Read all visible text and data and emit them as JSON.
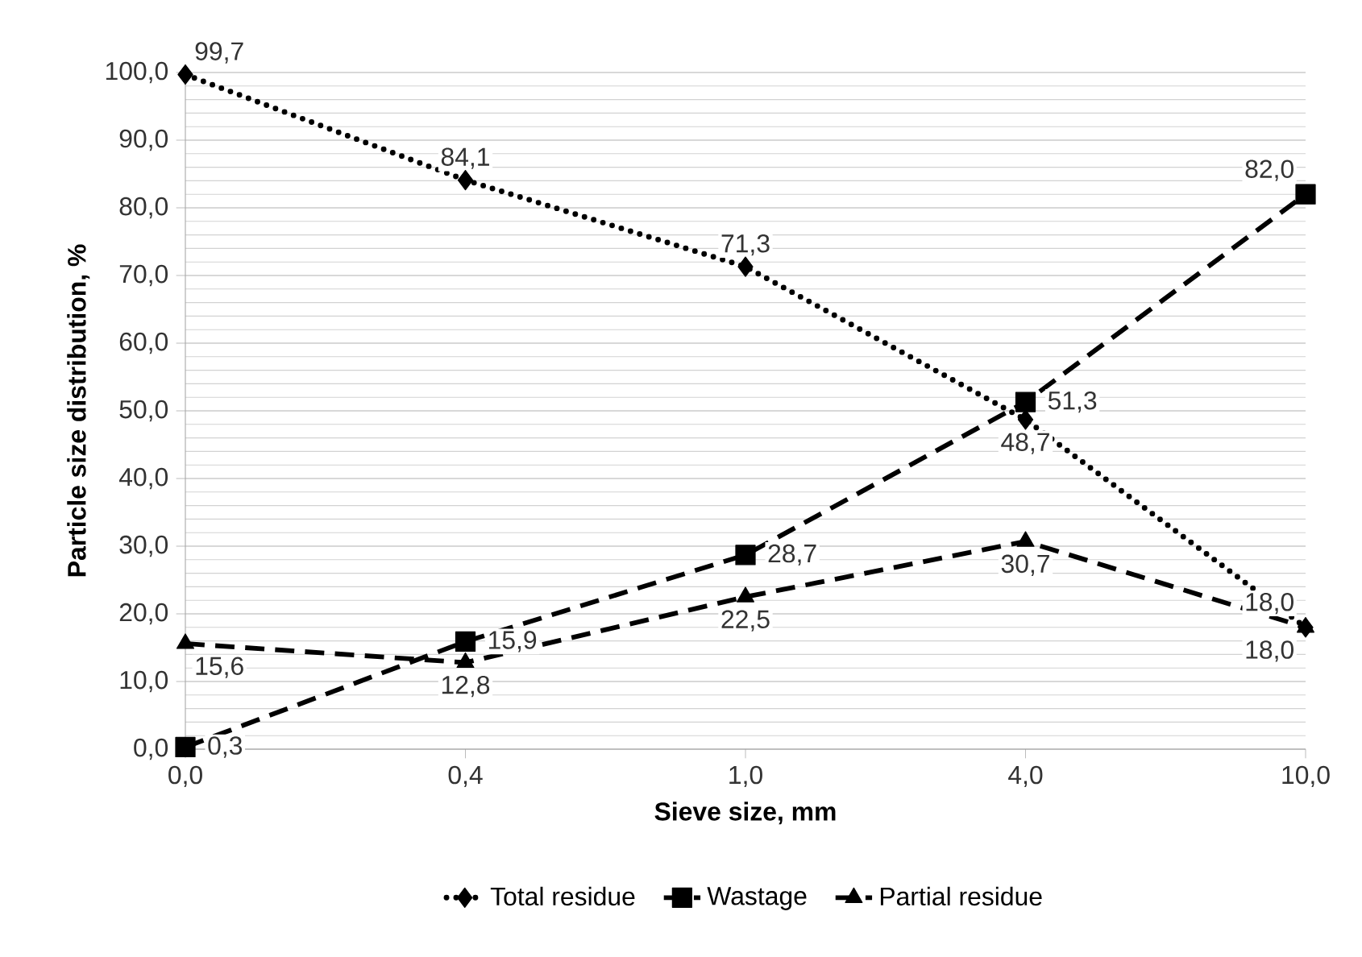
{
  "chart_data": {
    "type": "line",
    "xlabel": "Sieve size, mm",
    "ylabel": "Particle size distribution, %",
    "categories": [
      "0,0",
      "0,4",
      "1,0",
      "4,0",
      "10,0"
    ],
    "ylim": [
      0,
      100
    ],
    "yticks": [
      {
        "value": 0,
        "label": "0,0"
      },
      {
        "value": 10,
        "label": "10,0"
      },
      {
        "value": 20,
        "label": "20,0"
      },
      {
        "value": 30,
        "label": "30,0"
      },
      {
        "value": 40,
        "label": "40,0"
      },
      {
        "value": 50,
        "label": "50,0"
      },
      {
        "value": 60,
        "label": "60,0"
      },
      {
        "value": 70,
        "label": "70,0"
      },
      {
        "value": 80,
        "label": "80,0"
      },
      {
        "value": 90,
        "label": "90,0"
      },
      {
        "value": 100,
        "label": "100,0"
      }
    ],
    "grid": "y",
    "legend": "bottom",
    "series": [
      {
        "name": "Total residue",
        "color": "#000000",
        "marker": "diamond",
        "line_style": "dotted",
        "values": [
          99.7,
          84.1,
          71.3,
          48.7,
          18.0
        ],
        "value_labels": [
          "99,7",
          "84,1",
          "71,3",
          "48,7",
          "18,0"
        ]
      },
      {
        "name": "Wastage",
        "color": "#000000",
        "marker": "square",
        "line_style": "dashed",
        "values": [
          0.3,
          15.9,
          28.7,
          51.3,
          82.0
        ],
        "value_labels": [
          "0,3",
          "15,9",
          "28,7",
          "51,3",
          "82,0"
        ]
      },
      {
        "name": "Partial residue",
        "color": "#000000",
        "marker": "triangle",
        "line_style": "dashed",
        "values": [
          15.6,
          12.8,
          22.5,
          30.7,
          18.0
        ],
        "value_labels": [
          "15,6",
          "12,8",
          "22,5",
          "30,7",
          "18,0"
        ]
      }
    ]
  }
}
